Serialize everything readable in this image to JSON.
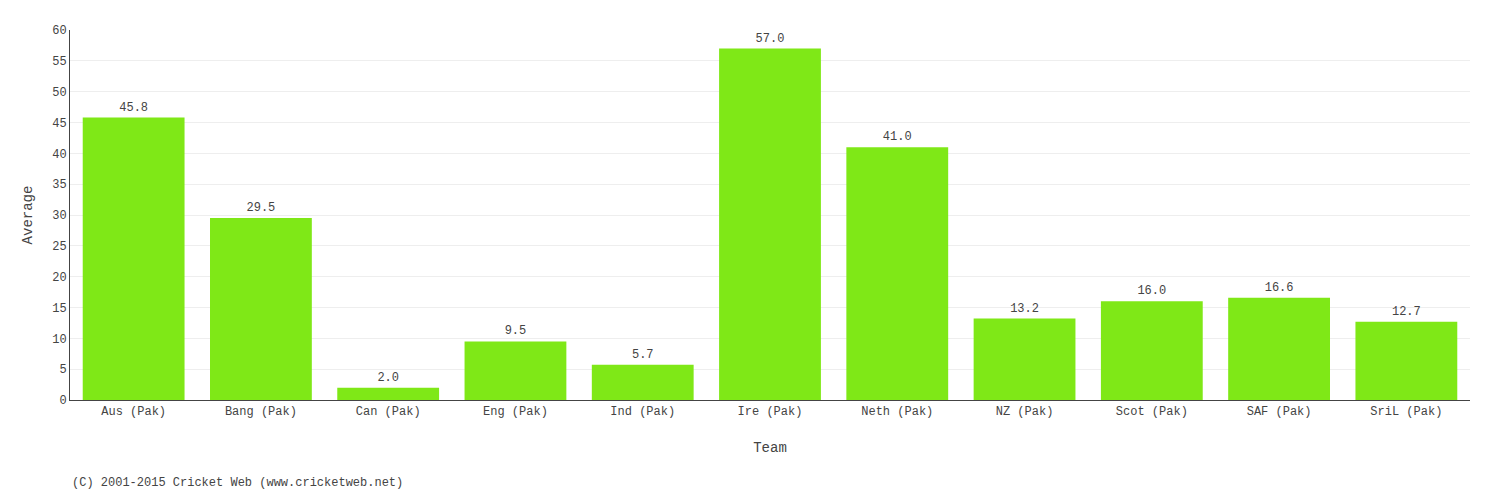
{
  "chart_data": {
    "type": "bar",
    "categories": [
      "Aus (Pak)",
      "Bang (Pak)",
      "Can (Pak)",
      "Eng (Pak)",
      "Ind (Pak)",
      "Ire (Pak)",
      "Neth (Pak)",
      "NZ (Pak)",
      "Scot (Pak)",
      "SAF (Pak)",
      "SriL (Pak)"
    ],
    "values": [
      45.8,
      29.5,
      2.0,
      9.5,
      5.7,
      57.0,
      41.0,
      13.2,
      16.0,
      16.6,
      12.7
    ],
    "value_labels": [
      "45.8",
      "29.5",
      "2.0",
      "9.5",
      "5.7",
      "57.0",
      "41.0",
      "13.2",
      "16.0",
      "16.6",
      "12.7"
    ],
    "data_labels": true,
    "color": "#7FE817",
    "xlabel": "Team",
    "ylabel": "Average",
    "ylim": [
      0,
      60
    ],
    "yticks": [
      0,
      5,
      10,
      15,
      20,
      25,
      30,
      35,
      40,
      45,
      50,
      55,
      60
    ],
    "grid": true,
    "annotations": [
      "(C) 2001-2015 Cricket Web (www.cricketweb.net)"
    ]
  }
}
